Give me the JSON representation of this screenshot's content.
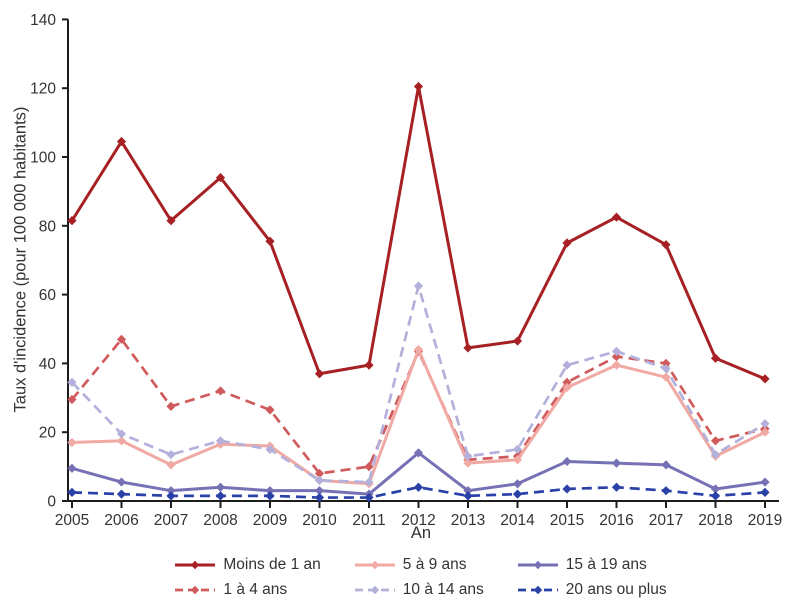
{
  "chart_data": {
    "type": "line",
    "title": "",
    "xlabel": "An",
    "ylabel": "Taux d'incidence (pour 100 000 habitants)",
    "x": [
      "2005",
      "2006",
      "2007",
      "2008",
      "2009",
      "2010",
      "2011",
      "2012",
      "2013",
      "2014",
      "2015",
      "2016",
      "2017",
      "2018",
      "2019"
    ],
    "ylim": [
      0,
      140
    ],
    "y_ticks": [
      0,
      20,
      40,
      60,
      80,
      100,
      120,
      140
    ],
    "grid": false,
    "legend_position": "bottom",
    "axis_color": "#1c1c1c",
    "text_color": "#333333",
    "series": [
      {
        "name": "Moins de 1 an",
        "color": "#a62024",
        "style": "solid",
        "values": [
          81.5,
          104.5,
          81.5,
          94,
          75.5,
          37,
          39.5,
          120.5,
          44.5,
          46.5,
          75,
          82.5,
          74.5,
          41.5,
          35.5
        ]
      },
      {
        "name": "1 à 4 ans",
        "color": "#d15b5c",
        "style": "dashed",
        "values": [
          29.5,
          47,
          27.5,
          32,
          26.5,
          8,
          10,
          43.5,
          12,
          13,
          34.5,
          42,
          40,
          17.5,
          21
        ]
      },
      {
        "name": "5 à 9 ans",
        "color": "#f0a9a3",
        "style": "solid",
        "values": [
          17,
          17.5,
          10.5,
          16.5,
          16,
          6,
          5,
          44,
          11,
          12,
          33,
          39.5,
          36,
          13,
          20
        ]
      },
      {
        "name": "10 à 14 ans",
        "color": "#b3b1db",
        "style": "dashed",
        "values": [
          34.5,
          19.5,
          13.5,
          17.5,
          15,
          6,
          5.5,
          62.5,
          13,
          15,
          39.5,
          43.5,
          38.5,
          13.5,
          22.5
        ]
      },
      {
        "name": "15 à 19 ans",
        "color": "#7670b5",
        "style": "solid",
        "values": [
          9.5,
          5.5,
          3,
          4,
          3,
          3,
          2,
          14,
          3,
          5,
          11.5,
          11,
          10.5,
          3.5,
          5.5
        ]
      },
      {
        "name": "20 ans ou plus",
        "color": "#2a41a8",
        "style": "dashed",
        "values": [
          2.5,
          2,
          1.5,
          1.5,
          1.5,
          1,
          1,
          4,
          1.5,
          2,
          3.5,
          4,
          3,
          1.5,
          2.5
        ]
      }
    ],
    "legend_columns": [
      [
        "Moins de 1 an",
        "1 à 4 ans"
      ],
      [
        "5 à 9 ans",
        "10 à 14 ans"
      ],
      [
        "15 à 19 ans",
        "20 ans ou plus"
      ]
    ]
  }
}
